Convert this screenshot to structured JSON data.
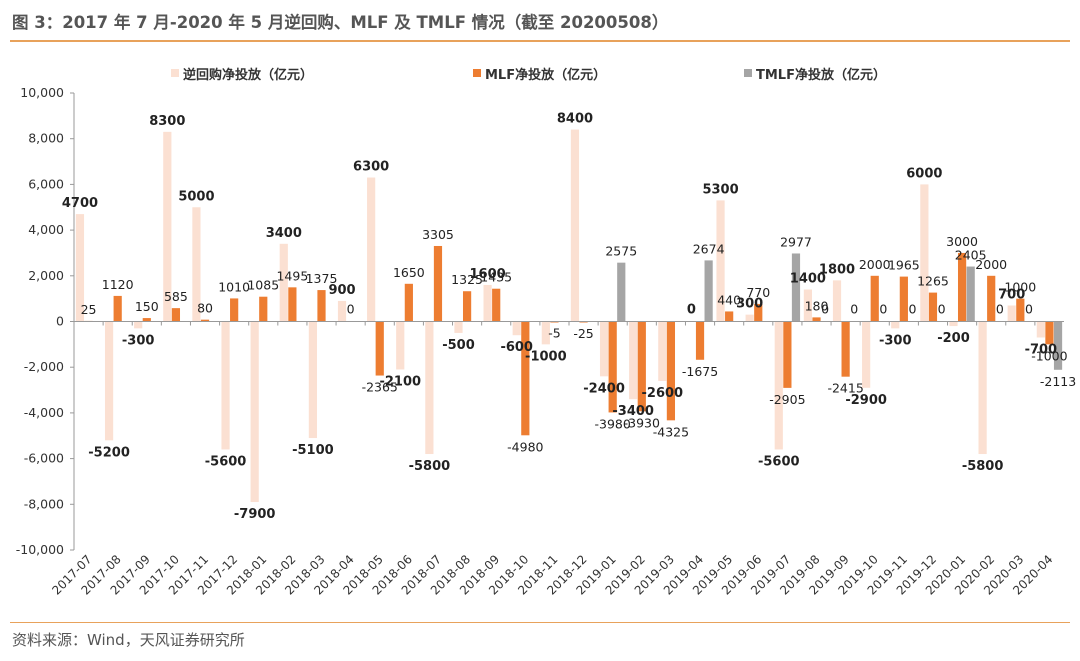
{
  "title": "图 3：2017 年 7 月-2020 年 5 月逆回购、MLF 及 TMLF 情况（截至 20200508）",
  "source": "资料来源：Wind，天风证券研究所",
  "colors": {
    "repo": "#fbe0d2",
    "mlf": "#ed7d31",
    "tmlf": "#a5a5a5",
    "rule": "#e8a25b"
  },
  "legend": [
    {
      "key": "repo",
      "label": "逆回购净投放（亿元）"
    },
    {
      "key": "mlf",
      "label": "MLF净投放（亿元）"
    },
    {
      "key": "tmlf",
      "label": "TMLF净投放（亿元）"
    }
  ],
  "chart_data": {
    "type": "bar",
    "ylim": [
      -10000,
      10000
    ],
    "yticks": [
      -10000,
      -8000,
      -6000,
      -4000,
      -2000,
      0,
      2000,
      4000,
      6000,
      8000,
      10000
    ],
    "ytick_labels": [
      "-10,000",
      "-8,000",
      "-6,000",
      "-4,000",
      "-2,000",
      "0",
      "2,000",
      "4,000",
      "6,000",
      "8,000",
      "10,000"
    ],
    "categories": [
      "2017-07",
      "2017-08",
      "2017-09",
      "2017-10",
      "2017-11",
      "2017-12",
      "2018-01",
      "2018-02",
      "2018-03",
      "2018-04",
      "2018-05",
      "2018-06",
      "2018-07",
      "2018-08",
      "2018-09",
      "2018-10",
      "2018-11",
      "2018-12",
      "2019-01",
      "2019-02",
      "2019-03",
      "2019-04",
      "2019-05",
      "2019-06",
      "2019-07",
      "2019-08",
      "2019-09",
      "2019-10",
      "2019-11",
      "2019-12",
      "2020-01",
      "2020-02",
      "2020-03",
      "2020-04"
    ],
    "series": [
      {
        "name": "逆回购净投放（亿元）",
        "key": "repo",
        "values": [
          4700,
          -5200,
          -300,
          8300,
          5000,
          -5600,
          -7900,
          3400,
          -5100,
          900,
          6300,
          -2100,
          -5800,
          -500,
          1600,
          -600,
          -1000,
          8400,
          -2400,
          -3400,
          -2600,
          0,
          5300,
          300,
          -5600,
          1400,
          1800,
          -2900,
          -300,
          6000,
          -200,
          -5800,
          700,
          -700
        ],
        "labels": [
          "4700",
          "-5200",
          "-300",
          "8300",
          "5000",
          "-5600",
          "-7900",
          "3400",
          "-5100",
          "900",
          "6300",
          "-2100",
          "-5800",
          "-500",
          "1600",
          "-600",
          "-1000",
          "8400",
          "-2400",
          "-3400",
          "-2600",
          "0",
          "5300",
          "300",
          "-5600",
          "1400",
          "1800",
          "-2900",
          "-300",
          "6000",
          "-200",
          "-5800",
          "700",
          "-700"
        ]
      },
      {
        "name": "MLF净投放（亿元）",
        "key": "mlf",
        "values": [
          25,
          1120,
          150,
          585,
          80,
          1010,
          1085,
          1495,
          1375,
          0,
          -2365,
          1650,
          3305,
          1325,
          1435,
          -4980,
          -5,
          -25,
          -3980,
          -3930,
          -4325,
          -1675,
          440,
          770,
          -2905,
          180,
          -2415,
          2000,
          1965,
          1265,
          3000,
          2000,
          1000,
          -1000
        ],
        "labels": [
          "25",
          "1120",
          "150",
          "585",
          "80",
          "1010",
          "1085",
          "1495",
          "1375",
          "0",
          "-2365",
          "1650",
          "3305",
          "1325",
          "1435",
          "-4980",
          "-5",
          "-25",
          "-3980",
          "-3930",
          "-4325",
          "-1675",
          "440",
          "770",
          "-2905",
          "180",
          "-2415",
          "2000",
          "1965",
          "1265",
          "3000",
          "2000",
          "1000",
          "-1000"
        ]
      },
      {
        "name": "TMLF净投放（亿元）",
        "key": "tmlf",
        "values": [
          0,
          0,
          0,
          0,
          0,
          0,
          0,
          0,
          0,
          0,
          0,
          0,
          0,
          0,
          0,
          0,
          0,
          0,
          2575,
          0,
          0,
          2674,
          0,
          0,
          2977,
          0,
          0,
          0,
          0,
          0,
          2405,
          0,
          0,
          -2113
        ],
        "labels": [
          "",
          "",
          "",
          "",
          "",
          "",
          "",
          "",
          "",
          "",
          "",
          "",
          "",
          "",
          "",
          "",
          "",
          "",
          "2575",
          "",
          "",
          "2674",
          "",
          "",
          "2977",
          "0",
          "0",
          "0",
          "0",
          "0",
          "2405",
          "0",
          "0",
          "-2113"
        ]
      }
    ]
  }
}
